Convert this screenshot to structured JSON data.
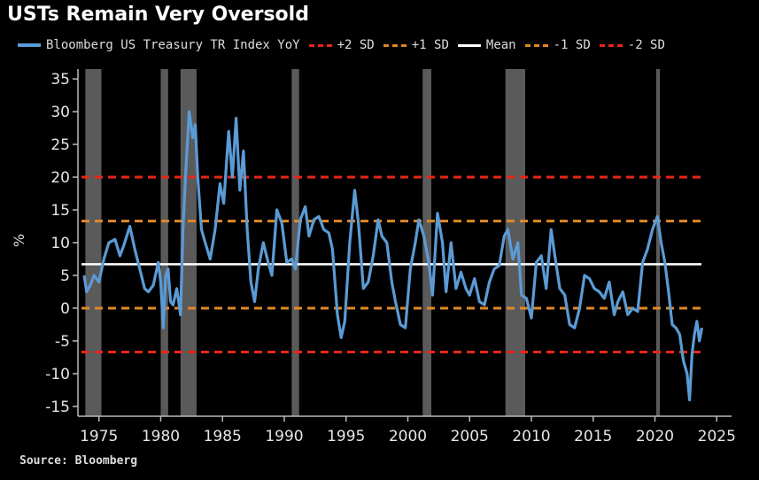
{
  "title": "USTs Remain Very Oversold",
  "source": "Source: Bloomberg",
  "legend": [
    {
      "label": "Bloomberg US Treasury TR Index YoY",
      "style": "solid",
      "color": "#5b9bd5"
    },
    {
      "label": "+2 SD",
      "style": "dashed",
      "color": "#e8261a"
    },
    {
      "label": "+1 SD",
      "style": "dashed",
      "color": "#e0882a"
    },
    {
      "label": "Mean",
      "style": "solid",
      "color": "#ffffff"
    },
    {
      "label": "-1 SD",
      "style": "dashed",
      "color": "#e0882a"
    },
    {
      "label": "-2 SD",
      "style": "dashed",
      "color": "#e8261a"
    }
  ],
  "chart_data": {
    "type": "line",
    "title": "USTs Remain Very Oversold",
    "xlabel": "",
    "ylabel": "%",
    "xlim": [
      1973.3,
      2026.2
    ],
    "ylim": [
      -16.5,
      36.5
    ],
    "xticks": [
      1975,
      1980,
      1985,
      1990,
      1995,
      2000,
      2005,
      2010,
      2015,
      2020,
      2025
    ],
    "yticks": [
      35,
      30,
      25,
      20,
      15,
      10,
      5,
      0,
      -5,
      -10,
      -15
    ],
    "grid": false,
    "legend_position": "top",
    "recessions": [
      [
        1973.9,
        1975.2
      ],
      [
        1980.0,
        1980.6
      ],
      [
        1981.6,
        1982.9
      ],
      [
        1990.6,
        1991.2
      ],
      [
        2001.2,
        2001.9
      ],
      [
        2007.9,
        2009.5
      ],
      [
        2020.1,
        2020.4
      ]
    ],
    "reference_lines": [
      {
        "name": "+2 SD",
        "value": 20.0,
        "color": "#e8261a",
        "style": "dashed"
      },
      {
        "name": "+1 SD",
        "value": 13.3,
        "color": "#e0882a",
        "style": "dashed"
      },
      {
        "name": "Mean",
        "value": 6.7,
        "color": "#ffffff",
        "style": "solid"
      },
      {
        "name": "-1 SD",
        "value": 0.0,
        "color": "#e0882a",
        "style": "dashed"
      },
      {
        "name": "-2 SD",
        "value": -6.7,
        "color": "#e8261a",
        "style": "dashed"
      }
    ],
    "series": [
      {
        "name": "Bloomberg US Treasury TR Index YoY",
        "color": "#5b9bd5",
        "x": [
          1973.8,
          1974.0,
          1974.3,
          1974.6,
          1975.0,
          1975.4,
          1975.8,
          1976.3,
          1976.7,
          1977.0,
          1977.5,
          1977.9,
          1978.3,
          1978.7,
          1979.0,
          1979.4,
          1979.8,
          1980.0,
          1980.2,
          1980.4,
          1980.6,
          1980.8,
          1981.0,
          1981.3,
          1981.6,
          1981.8,
          1982.0,
          1982.3,
          1982.6,
          1982.8,
          1983.0,
          1983.3,
          1983.6,
          1984.0,
          1984.4,
          1984.8,
          1985.1,
          1985.5,
          1985.8,
          1986.1,
          1986.4,
          1986.7,
          1987.0,
          1987.3,
          1987.6,
          1987.9,
          1988.3,
          1988.7,
          1989.0,
          1989.4,
          1989.8,
          1990.2,
          1990.6,
          1990.9,
          1991.3,
          1991.7,
          1992.0,
          1992.4,
          1992.8,
          1993.2,
          1993.6,
          1993.9,
          1994.3,
          1994.6,
          1994.9,
          1995.3,
          1995.7,
          1996.0,
          1996.4,
          1996.8,
          1997.2,
          1997.6,
          1997.9,
          1998.3,
          1998.7,
          1999.0,
          1999.4,
          1999.8,
          2000.2,
          2000.6,
          2000.9,
          2001.3,
          2001.7,
          2002.0,
          2002.4,
          2002.8,
          2003.1,
          2003.5,
          2003.9,
          2004.3,
          2004.7,
          2005.0,
          2005.4,
          2005.8,
          2006.2,
          2006.6,
          2007.0,
          2007.4,
          2007.8,
          2008.1,
          2008.5,
          2008.9,
          2009.2,
          2009.6,
          2010.0,
          2010.4,
          2010.8,
          2011.2,
          2011.6,
          2011.9,
          2012.3,
          2012.7,
          2013.1,
          2013.5,
          2013.9,
          2014.3,
          2014.7,
          2015.1,
          2015.5,
          2015.9,
          2016.3,
          2016.7,
          2017.0,
          2017.4,
          2017.8,
          2018.2,
          2018.6,
          2019.0,
          2019.4,
          2019.8,
          2020.2,
          2020.5,
          2020.8,
          2021.1,
          2021.4,
          2021.7,
          2022.0,
          2022.3,
          2022.6,
          2022.8,
          2023.0,
          2023.2,
          2023.4,
          2023.6,
          2023.8
        ],
        "values": [
          5.0,
          2.5,
          3.5,
          5.0,
          4.0,
          7.5,
          10.0,
          10.5,
          8.0,
          9.5,
          12.5,
          9.0,
          6.0,
          3.0,
          2.5,
          3.5,
          7.0,
          4.0,
          -3.0,
          5.0,
          6.0,
          1.0,
          0.5,
          3.0,
          -1.0,
          12.0,
          20.0,
          30.0,
          26.0,
          28.0,
          20.0,
          12.0,
          10.0,
          7.5,
          12.0,
          19.0,
          16.0,
          27.0,
          20.0,
          29.0,
          18.0,
          24.0,
          12.0,
          4.0,
          1.0,
          6.0,
          10.0,
          7.0,
          5.0,
          15.0,
          13.0,
          7.0,
          7.5,
          6.0,
          13.5,
          15.5,
          11.0,
          13.5,
          14.0,
          12.0,
          11.5,
          9.0,
          -1.0,
          -4.5,
          -2.0,
          10.0,
          18.0,
          13.0,
          3.0,
          4.0,
          8.0,
          13.5,
          11.0,
          10.0,
          4.0,
          1.0,
          -2.5,
          -3.0,
          6.0,
          10.0,
          13.5,
          11.0,
          7.0,
          2.0,
          14.5,
          10.0,
          2.5,
          10.0,
          3.0,
          5.5,
          3.0,
          2.0,
          4.5,
          1.0,
          0.5,
          4.0,
          6.0,
          6.5,
          11.0,
          12.0,
          7.5,
          10.0,
          2.0,
          1.5,
          -1.5,
          7.0,
          8.0,
          3.0,
          12.0,
          8.0,
          3.0,
          2.0,
          -2.5,
          -3.0,
          0.0,
          5.0,
          4.5,
          3.0,
          2.5,
          1.5,
          4.0,
          -1.0,
          1.0,
          2.5,
          -1.0,
          0.0,
          -0.5,
          7.0,
          9.0,
          12.0,
          14.0,
          10.0,
          7.0,
          2.5,
          -2.5,
          -3.0,
          -4.0,
          -8.0,
          -10.0,
          -14.0,
          -7.0,
          -4.0,
          -2.0,
          -5.0,
          -3.0
        ]
      }
    ]
  }
}
